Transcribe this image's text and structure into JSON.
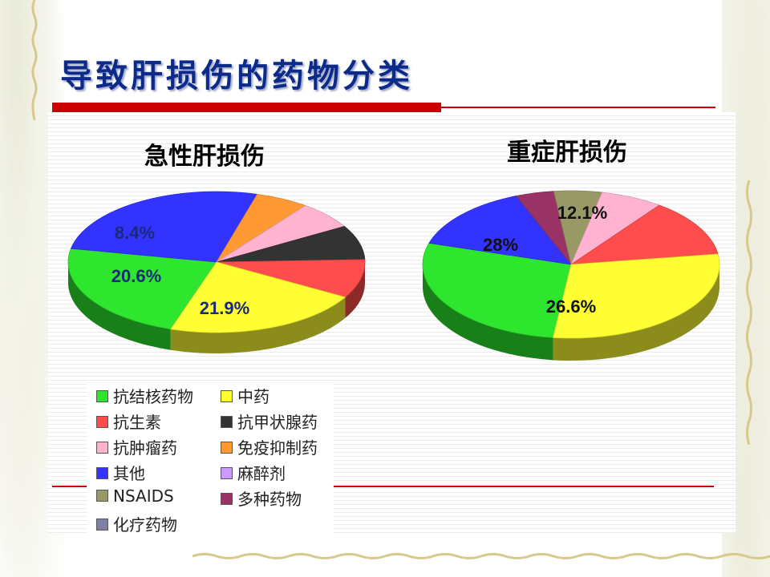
{
  "slide": {
    "title": "导致肝损伤的药物分类"
  },
  "colors": {
    "title": "#0b2a8a",
    "accent_red": "#cc0000",
    "categories": {
      "抗结核药物": "#2ee62e",
      "中药": "#ffff33",
      "抗生素": "#ff4d4d",
      "抗甲状腺药": "#333333",
      "抗肿瘤药": "#ffb3d1",
      "免疫抑制药": "#ff9933",
      "其他": "#3333ff",
      "麻醉剂": "#cc99ff",
      "NSAIDS": "#999966",
      "多种药物": "#993366",
      "化疗药物": "#8080a6"
    }
  },
  "legend": {
    "items": [
      {
        "label": "抗结核药物",
        "color": "#2ee62e"
      },
      {
        "label": "中药",
        "color": "#ffff33"
      },
      {
        "label": "抗生素",
        "color": "#ff4d4d"
      },
      {
        "label": "抗甲状腺药",
        "color": "#333333"
      },
      {
        "label": "抗肿瘤药",
        "color": "#ffb3d1"
      },
      {
        "label": "免疫抑制药",
        "color": "#ff9933"
      },
      {
        "label": "其他",
        "color": "#3333ff"
      },
      {
        "label": "麻醉剂",
        "color": "#cc99ff"
      },
      {
        "label": "NSAIDS",
        "color": "#999966"
      },
      {
        "label": "多种药物",
        "color": "#993366"
      },
      {
        "label": "化疗药物",
        "color": "#8080a6"
      }
    ]
  },
  "chart_data": [
    {
      "type": "pie",
      "title": "急性肝损伤",
      "style": "3d",
      "slices": [
        {
          "category": "抗结核药物",
          "value": 21.9,
          "label": "21.9%",
          "color": "#2ee62e"
        },
        {
          "category": "其他",
          "value": 25.0,
          "label": "",
          "color": "#3333ff"
        },
        {
          "category": "免疫抑制药",
          "value": 5.5,
          "label": "",
          "color": "#ff9933"
        },
        {
          "category": "抗肿瘤药",
          "value": 6.0,
          "label": "",
          "color": "#ffb3d1"
        },
        {
          "category": "抗甲状腺药",
          "value": 7.5,
          "label": "",
          "color": "#333333"
        },
        {
          "category": "抗生素",
          "value": 8.4,
          "label": "8.4%",
          "color": "#ff4d4d"
        },
        {
          "category": "中药",
          "value": 20.6,
          "label": "20.6%",
          "color": "#ffff33"
        }
      ]
    },
    {
      "type": "pie",
      "title": "重症肝损伤",
      "style": "3d",
      "slices": [
        {
          "category": "抗结核药物",
          "value": 26.6,
          "label": "26.6%",
          "color": "#2ee62e"
        },
        {
          "category": "其他",
          "value": 13.7,
          "label": "",
          "color": "#3333ff"
        },
        {
          "category": "多种药物",
          "value": 4.0,
          "label": "",
          "color": "#993366"
        },
        {
          "category": "NSAIDS",
          "value": 5.0,
          "label": "",
          "color": "#999966"
        },
        {
          "category": "抗肿瘤药",
          "value": 6.5,
          "label": "",
          "color": "#ffb3d1"
        },
        {
          "category": "抗生素",
          "value": 12.1,
          "label": "12.1%",
          "color": "#ff4d4d"
        },
        {
          "category": "中药",
          "value": 28,
          "label": "28%",
          "color": "#ffff33"
        }
      ]
    }
  ]
}
